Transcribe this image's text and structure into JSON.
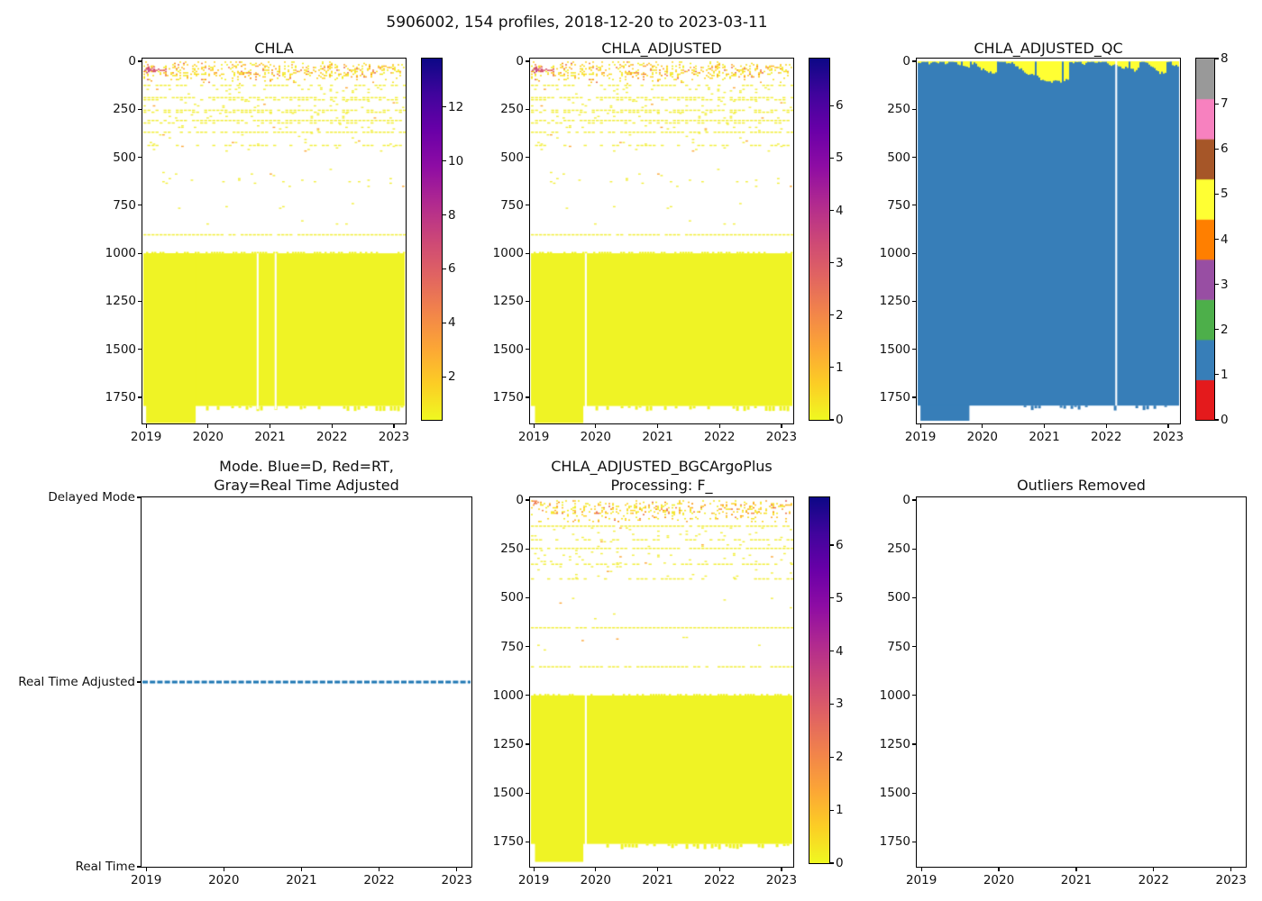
{
  "figure": {
    "suptitle": "5906002, 154 profiles, 2018-12-20 to 2023-03-11",
    "background": "#ffffff"
  },
  "shared": {
    "x_tick_labels": [
      "2019",
      "2020",
      "2021",
      "2022",
      "2023"
    ],
    "x_tick_values": [
      2019,
      2020,
      2021,
      2022,
      2023
    ],
    "depth_tick_labels": [
      "0",
      "250",
      "500",
      "750",
      "1000",
      "1250",
      "1500",
      "1750"
    ],
    "depth_tick_values": [
      0,
      250,
      500,
      750,
      1000,
      1250,
      1500,
      1750
    ]
  },
  "chart_data": [
    {
      "id": "chla",
      "type": "heatmap",
      "title": "CHLA",
      "x_range": [
        2018.94,
        2023.19
      ],
      "y_range": [
        -14,
        1886
      ],
      "y_inverted": true,
      "colorbar": {
        "style": "continuous",
        "cmap": "plasma_r",
        "vmin": 0.4,
        "vmax": 13.8,
        "tick_values": [
          2,
          4,
          6,
          8,
          10,
          12
        ],
        "tick_labels": [
          "2",
          "4",
          "6",
          "8",
          "10",
          "12"
        ]
      },
      "content": {
        "seed": 42,
        "surface_band": {
          "depth_range": [
            1,
            118
          ],
          "density_by_depth": [
            [
              10,
              0.1
            ],
            [
              20,
              0.2
            ],
            [
              75,
              0.27
            ],
            [
              95,
              0.12
            ],
            [
              118,
              0.05
            ]
          ]
        },
        "palette": {
          "yellow": [
            "#f0ed21",
            "#f7e025",
            "#fdd225"
          ],
          "orange": [
            "#fdc126",
            "#fca636",
            "#fb9106"
          ],
          "deep_orange": [
            "#f2844b",
            "#e8714e"
          ],
          "red": "#e16462"
        },
        "red_clusters": [
          {
            "x_range": [
              2018.97,
              2019.13
            ],
            "depth_range": [
              26,
              62
            ],
            "density": 0.55,
            "colors": [
              "#cc4778",
              "#d6556d",
              "#c13a7c",
              "#e16462"
            ]
          },
          {
            "x_range": [
              2019.1,
              2019.32
            ],
            "depth_range": [
              38,
              56
            ],
            "density": 0.3,
            "colors": [
              "#e16462",
              "#d6556d"
            ]
          }
        ],
        "dashed_lines": [
          [
            122,
            0.6
          ],
          [
            186,
            0.85
          ],
          [
            197,
            0.5
          ],
          [
            252,
            0.65
          ],
          [
            262,
            0.45
          ],
          [
            305,
            0.85
          ],
          [
            318,
            0.5
          ],
          [
            366,
            0.8
          ],
          [
            435,
            0.45
          ],
          [
            900,
            0.95
          ]
        ],
        "sparse_regions": [
          [
            135,
            175,
            0.05
          ],
          [
            205,
            245,
            0.05
          ],
          [
            268,
            298,
            0.045
          ],
          [
            325,
            360,
            0.04
          ],
          [
            372,
            430,
            0.035
          ],
          [
            440,
            470,
            0.02
          ],
          [
            560,
            650,
            0.018
          ],
          [
            730,
            770,
            0.01
          ],
          [
            820,
            860,
            0.02
          ]
        ],
        "block": {
          "depth_range": [
            1000,
            1795
          ],
          "color": "#eff325"
        },
        "deep_extension": {
          "x_range": [
            2019.0,
            2019.8
          ],
          "bottom": 1884
        },
        "white_gaps": [
          {
            "x": 2020.8,
            "depth_range": [
              1000,
              1812
            ]
          },
          {
            "x": 2021.09,
            "depth_range": [
              1000,
              1812
            ]
          }
        ],
        "bottom_edge_dashes": {
          "x_range": [
            2019.85,
            2023.12
          ],
          "density": 0.4
        }
      }
    },
    {
      "id": "chla_adjusted",
      "type": "heatmap",
      "title": "CHLA_ADJUSTED",
      "x_range": [
        2018.94,
        2023.19
      ],
      "y_range": [
        -14,
        1886
      ],
      "y_inverted": true,
      "colorbar": {
        "style": "continuous",
        "cmap": "plasma_r",
        "vmin": 0,
        "vmax": 6.9,
        "tick_values": [
          0,
          1,
          2,
          3,
          4,
          5,
          6
        ],
        "tick_labels": [
          "0",
          "1",
          "2",
          "3",
          "4",
          "5",
          "6"
        ]
      },
      "content": {
        "seed": 42,
        "surface_band": {
          "depth_range": [
            1,
            118
          ],
          "density_by_depth": [
            [
              10,
              0.1
            ],
            [
              20,
              0.2
            ],
            [
              75,
              0.27
            ],
            [
              95,
              0.12
            ],
            [
              118,
              0.05
            ]
          ]
        },
        "palette": {
          "yellow": [
            "#f0ed21",
            "#f7e025",
            "#fdd225"
          ],
          "orange": [
            "#fdc126",
            "#fca636",
            "#fb9106"
          ],
          "deep_orange": [
            "#f2844b",
            "#e8714e"
          ],
          "red": "#e16462"
        },
        "red_clusters": [
          {
            "x_range": [
              2018.97,
              2019.13
            ],
            "depth_range": [
              26,
              62
            ],
            "density": 0.55,
            "colors": [
              "#cc4778",
              "#d6556d",
              "#c13a7c",
              "#e16462"
            ]
          },
          {
            "x_range": [
              2019.1,
              2019.32
            ],
            "depth_range": [
              38,
              56
            ],
            "density": 0.3,
            "colors": [
              "#e16462",
              "#d6556d"
            ]
          }
        ],
        "dashed_lines": [
          [
            122,
            0.6
          ],
          [
            186,
            0.85
          ],
          [
            197,
            0.5
          ],
          [
            252,
            0.65
          ],
          [
            262,
            0.45
          ],
          [
            305,
            0.85
          ],
          [
            318,
            0.5
          ],
          [
            366,
            0.8
          ],
          [
            435,
            0.45
          ],
          [
            900,
            0.95
          ]
        ],
        "sparse_regions": [
          [
            135,
            175,
            0.05
          ],
          [
            205,
            245,
            0.05
          ],
          [
            268,
            298,
            0.045
          ],
          [
            325,
            360,
            0.04
          ],
          [
            372,
            430,
            0.035
          ],
          [
            440,
            470,
            0.02
          ],
          [
            560,
            650,
            0.018
          ],
          [
            730,
            770,
            0.01
          ],
          [
            820,
            860,
            0.02
          ]
        ],
        "block": {
          "depth_range": [
            1000,
            1795
          ],
          "color": "#eff325"
        },
        "deep_extension": {
          "x_range": [
            2019.02,
            2019.8
          ],
          "bottom": 1884
        },
        "white_gaps": [
          {
            "x": 2019.84,
            "depth_range": [
              1000,
              1812
            ]
          }
        ],
        "bottom_edge_dashes": {
          "x_range": [
            2019.88,
            2023.12
          ],
          "density": 0.4
        }
      }
    },
    {
      "id": "chla_adjusted_qc",
      "type": "heatmap",
      "title": "CHLA_ADJUSTED_QC",
      "x_range": [
        2018.94,
        2023.19
      ],
      "y_range": [
        -14,
        1886
      ],
      "y_inverted": true,
      "colorbar": {
        "style": "discrete",
        "colors": [
          "#e41a1c",
          "#377eb8",
          "#4daf4a",
          "#984ea3",
          "#ff7f00",
          "#ffff33",
          "#a65628",
          "#f781bf",
          "#999999"
        ],
        "tick_labels": [
          "0",
          "1",
          "2",
          "3",
          "4",
          "5",
          "6",
          "7",
          "8"
        ]
      },
      "content": {
        "seed": 7,
        "mode": "qc",
        "fill_color": "#377eb8",
        "cap_color": "#ffff33",
        "cap_depth_max": 112,
        "block": {
          "depth_range": [
            1.5,
            1793
          ]
        },
        "deep_extension": {
          "x_range": [
            2019.0,
            2019.79
          ],
          "bottom": 1872
        },
        "white_gaps": [
          {
            "x": 2022.16,
            "depth_range": [
              0,
              1793
            ]
          }
        ],
        "bottom_edge_dashes": {
          "x_range": [
            2020.55,
            2023.1
          ],
          "density": 0.38
        }
      }
    },
    {
      "id": "mode",
      "type": "line",
      "title_lines": [
        "Mode. Blue=D, Red=RT,",
        "Gray=Real Time Adjusted"
      ],
      "x_range": [
        2018.94,
        2023.19
      ],
      "y_categories": [
        "Delayed Mode",
        "Real Time Adjusted",
        "Real Time"
      ],
      "line": {
        "y_category": "Real Time Adjusted",
        "color": "#1f77b4",
        "dash": [
          6,
          2.2
        ],
        "width": 2.8
      }
    },
    {
      "id": "chla_adjusted_bgc",
      "type": "heatmap",
      "title_lines": [
        "CHLA_ADJUSTED_BGCArgoPlus",
        "Processing: F_"
      ],
      "x_range": [
        2018.94,
        2023.19
      ],
      "y_range": [
        -14,
        1877
      ],
      "y_inverted": true,
      "colorbar": {
        "style": "continuous",
        "cmap": "plasma_r",
        "vmin": 0,
        "vmax": 6.9,
        "tick_values": [
          0,
          1,
          2,
          3,
          4,
          5,
          6
        ],
        "tick_labels": [
          "0",
          "1",
          "2",
          "3",
          "4",
          "5",
          "6"
        ]
      },
      "content": {
        "seed": 77,
        "surface_band": {
          "depth_range": [
            1,
            112
          ],
          "density_by_depth": [
            [
              10,
              0.12
            ],
            [
              20,
              0.22
            ],
            [
              70,
              0.27
            ],
            [
              95,
              0.12
            ],
            [
              112,
              0.05
            ]
          ]
        },
        "palette": {
          "yellow": [
            "#f0ed21",
            "#f7e025",
            "#fdd225"
          ],
          "orange": [
            "#fdc126",
            "#fca636",
            "#fb9106"
          ],
          "deep_orange": [
            "#f2844b",
            "#e8714e"
          ],
          "red": "#e16462"
        },
        "red_clusters": [
          {
            "x_range": [
              2018.97,
              2019.06
            ],
            "depth_range": [
              2,
              20
            ],
            "density": 0.5,
            "colors": [
              "#e16462",
              "#f2844b"
            ]
          }
        ],
        "dashed_lines": [
          [
            130,
            0.9
          ],
          [
            200,
            0.5
          ],
          [
            244,
            0.9
          ],
          [
            325,
            0.55
          ],
          [
            400,
            0.45
          ],
          [
            650,
            0.95
          ],
          [
            850,
            0.7
          ]
        ],
        "sparse_regions": [
          [
            140,
            190,
            0.05
          ],
          [
            210,
            235,
            0.04
          ],
          [
            255,
            320,
            0.04
          ],
          [
            330,
            395,
            0.025
          ],
          [
            500,
            620,
            0.012
          ],
          [
            700,
            780,
            0.01
          ]
        ],
        "block": {
          "depth_range": [
            1000,
            1760
          ],
          "color": "#eff325"
        },
        "deep_extension": {
          "x_range": [
            2019.02,
            2019.8
          ],
          "bottom": 1852
        },
        "white_gaps": [
          {
            "x": 2019.84,
            "depth_range": [
              1000,
              1775
            ]
          }
        ],
        "bottom_edge_dashes": {
          "x_range": [
            2019.88,
            2023.12
          ],
          "density": 0.45
        }
      }
    },
    {
      "id": "outliers",
      "type": "heatmap",
      "title": "Outliers Removed",
      "x_range": [
        2018.94,
        2023.19
      ],
      "y_range": [
        -14,
        1877
      ],
      "y_inverted": true,
      "content": null
    }
  ]
}
